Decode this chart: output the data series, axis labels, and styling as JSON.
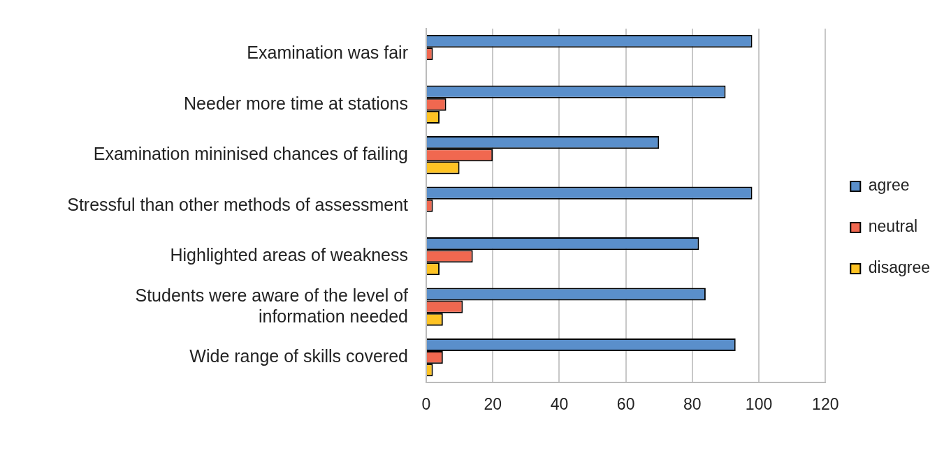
{
  "chart_data": {
    "type": "bar",
    "orientation": "horizontal",
    "categories": [
      "Examination was fair",
      "Needer more time at stations",
      "Examination mininised chances of failing",
      "Stressful than other methods of assessment",
      "Highlighted areas of weakness",
      "Students were aware of the level of information needed",
      "Wide range of skills covered"
    ],
    "series": [
      {
        "name": "agree",
        "color": "#5a8fcb",
        "values": [
          98,
          90,
          70,
          98,
          82,
          84,
          93
        ]
      },
      {
        "name": "neutral",
        "color": "#f06850",
        "values": [
          2,
          6,
          20,
          2,
          14,
          11,
          5
        ]
      },
      {
        "name": "disagree",
        "color": "#fec324",
        "values": [
          0,
          4,
          10,
          0,
          4,
          5,
          2
        ]
      }
    ],
    "xlim": [
      0,
      120
    ],
    "xticks": [
      0,
      20,
      40,
      60,
      80,
      100,
      120
    ],
    "grid": "x",
    "legend": "right"
  }
}
